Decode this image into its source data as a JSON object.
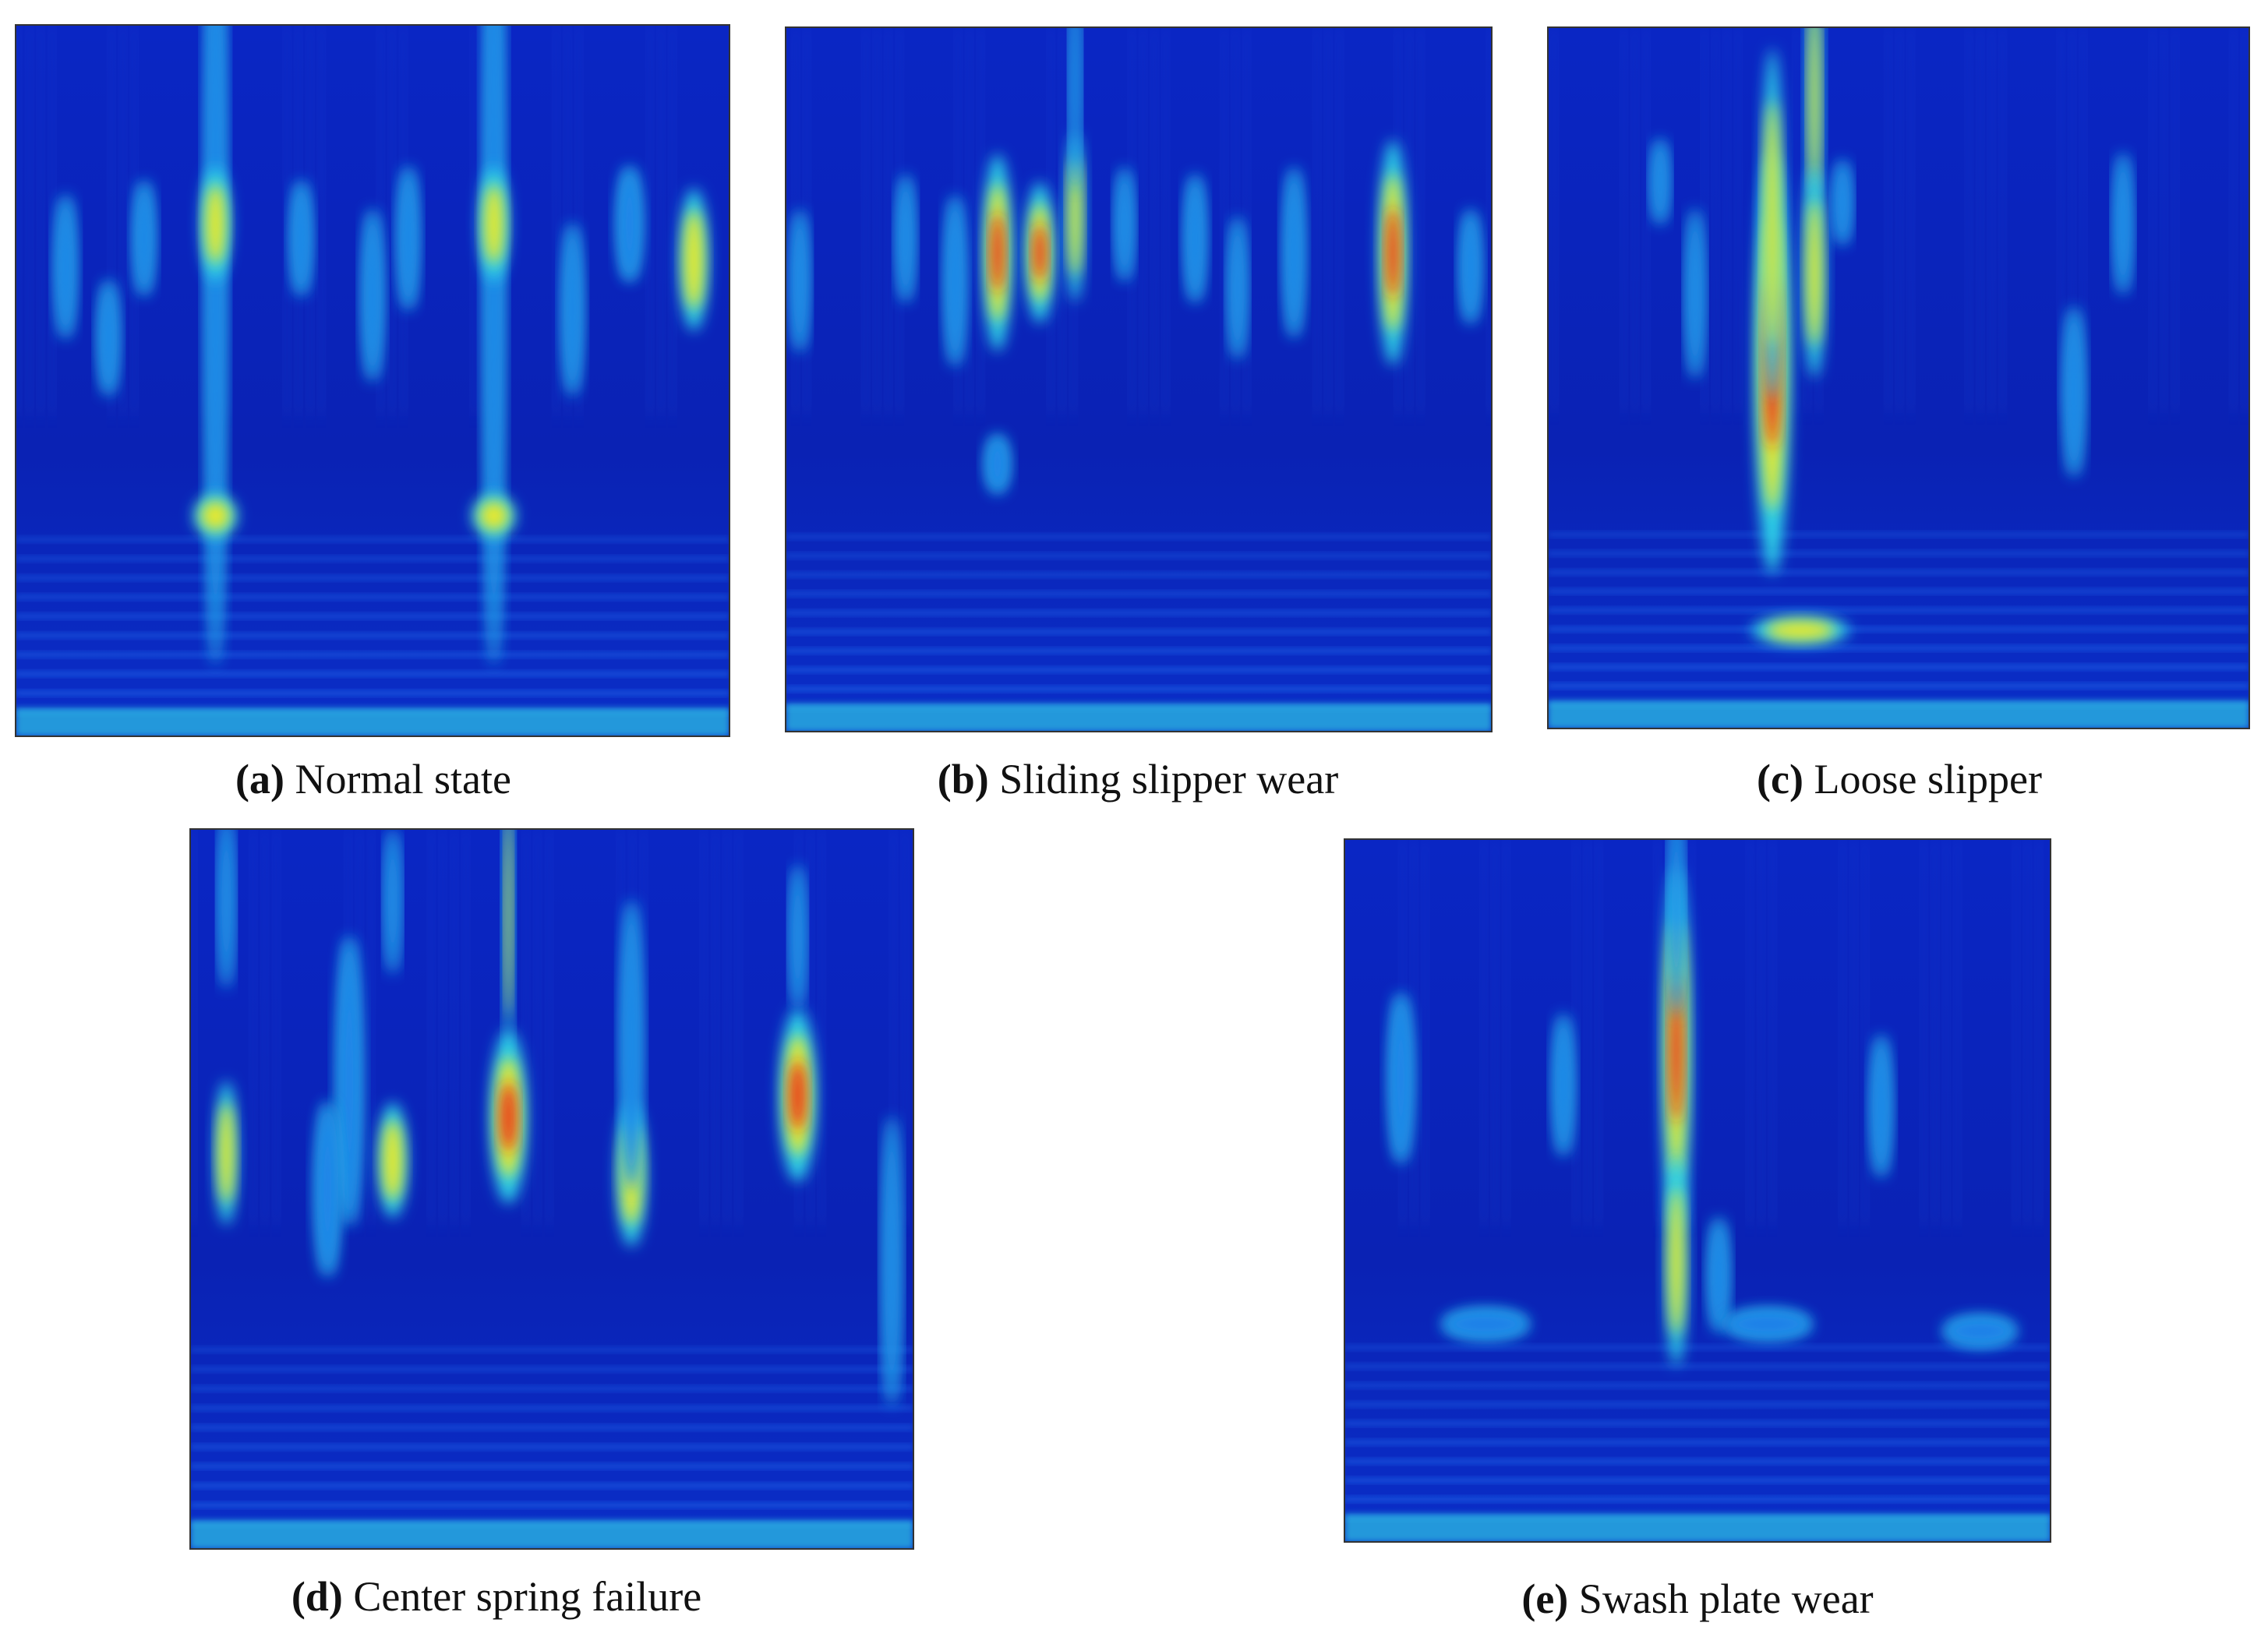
{
  "figure": {
    "panels": [
      {
        "letter": "(a)",
        "caption": "Normal state"
      },
      {
        "letter": "(b)",
        "caption": "Sliding slipper wear"
      },
      {
        "letter": "(c)",
        "caption": "Loose slipper"
      },
      {
        "letter": "(d)",
        "caption": "Center spring failure"
      },
      {
        "letter": "(e)",
        "caption": "Swash plate wear"
      }
    ]
  }
}
